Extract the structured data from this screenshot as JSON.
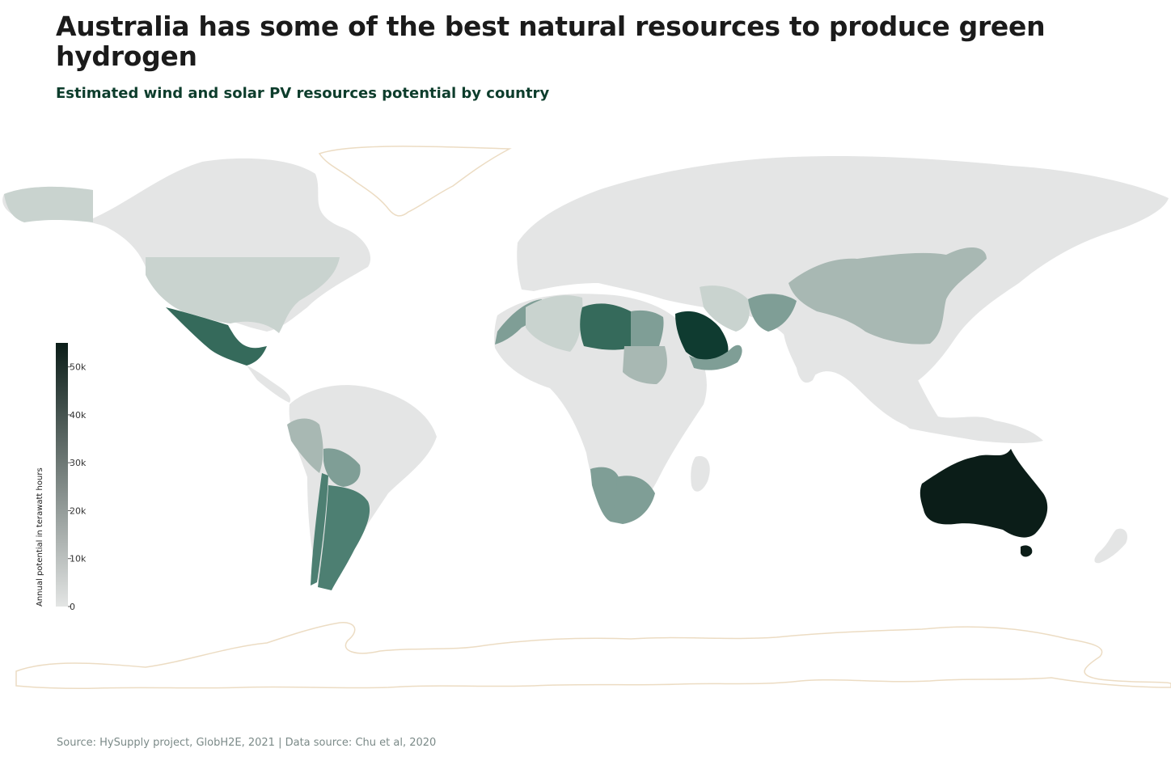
{
  "header": {
    "title": "Australia has some of the best natural resources to produce green hydrogen",
    "subtitle": "Estimated wind and solar PV resources potential by country"
  },
  "legend": {
    "title": "Annual potential in terawatt hours",
    "ticks": [
      "50k",
      "40k",
      "30k",
      "20k",
      "10k",
      "0"
    ],
    "color_low": "#e3e5e4",
    "color_high": "#0b1d18"
  },
  "footer": {
    "source": "Source: HySupply project, GlobH2E, 2021 | Data source: Chu et al, 2020"
  },
  "colors": {
    "land_default": "#e4e5e5",
    "ice_outline": "#ecdcc3",
    "scale": [
      "#e3e5e4",
      "#c9d3cf",
      "#a8b8b3",
      "#7f9e96",
      "#4d7f72",
      "#356a5b",
      "#0f3b30",
      "#0b1d18"
    ]
  },
  "chart_data": {
    "type": "choropleth",
    "title": "Australia has some of the best natural resources to produce green hydrogen",
    "subtitle": "Estimated wind and solar PV resources potential by country",
    "value_label": "Annual potential in terawatt hours",
    "range": [
      0,
      55000
    ],
    "ticks": [
      0,
      10000,
      20000,
      30000,
      40000,
      50000
    ],
    "highlighted_regions": [
      {
        "region": "Australia",
        "level": 7
      },
      {
        "region": "Saudi Arabia",
        "level": 6
      },
      {
        "region": "Libya",
        "level": 5
      },
      {
        "region": "Mexico",
        "level": 5
      },
      {
        "region": "Argentina",
        "level": 4
      },
      {
        "region": "Chile",
        "level": 4
      },
      {
        "region": "Namibia",
        "level": 3
      },
      {
        "region": "South Africa",
        "level": 3
      },
      {
        "region": "Morocco",
        "level": 3
      },
      {
        "region": "Egypt",
        "level": 3
      },
      {
        "region": "Afghanistan",
        "level": 3
      },
      {
        "region": "Bolivia",
        "level": 3
      },
      {
        "region": "China",
        "level": 2
      },
      {
        "region": "Sudan",
        "level": 2
      },
      {
        "region": "Peru",
        "level": 2
      },
      {
        "region": "United States",
        "level": 1
      },
      {
        "region": "Algeria",
        "level": 1
      },
      {
        "region": "Iran",
        "level": 1
      }
    ]
  }
}
